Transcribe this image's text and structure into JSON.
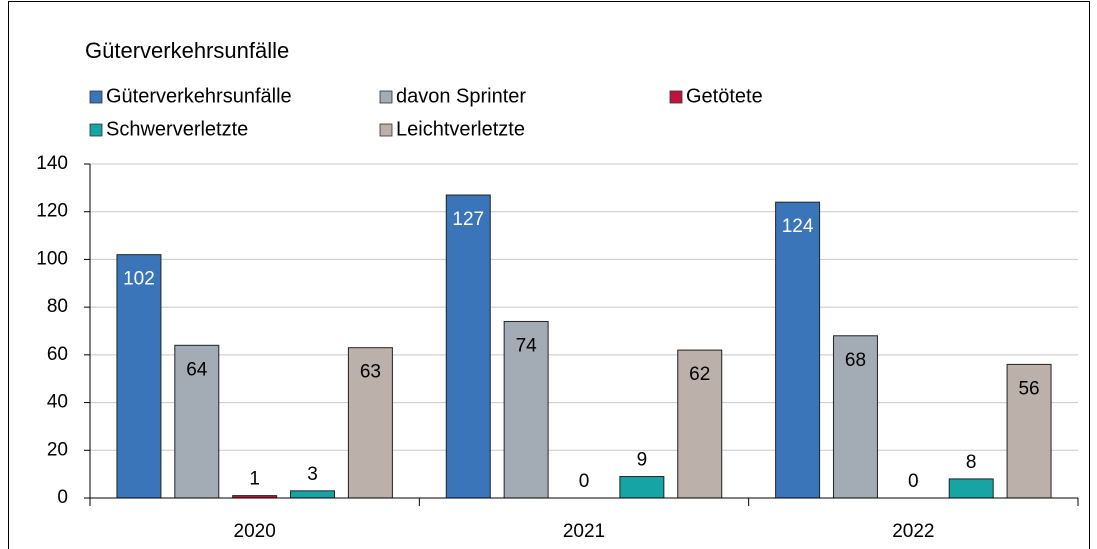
{
  "chart_data": {
    "type": "bar",
    "title": "Güterverkehrsunfälle",
    "categories": [
      "2020",
      "2021",
      "2022"
    ],
    "series": [
      {
        "name": "Güterverkehrsunfälle",
        "color": "#3a75b9",
        "values": [
          102,
          127,
          124
        ]
      },
      {
        "name": "davon Sprinter",
        "color": "#a3abb5",
        "values": [
          64,
          74,
          68
        ]
      },
      {
        "name": "Getötete",
        "color": "#c0143c",
        "values": [
          1,
          0,
          0
        ]
      },
      {
        "name": "Schwerverletzte",
        "color": "#16a4a4",
        "values": [
          3,
          9,
          8
        ]
      },
      {
        "name": "Leichtverletzte",
        "color": "#bbb0aa",
        "values": [
          63,
          62,
          56
        ]
      }
    ],
    "ylim": [
      0,
      140
    ],
    "yticks": [
      0,
      20,
      40,
      60,
      80,
      100,
      120,
      140
    ],
    "grid": true
  }
}
